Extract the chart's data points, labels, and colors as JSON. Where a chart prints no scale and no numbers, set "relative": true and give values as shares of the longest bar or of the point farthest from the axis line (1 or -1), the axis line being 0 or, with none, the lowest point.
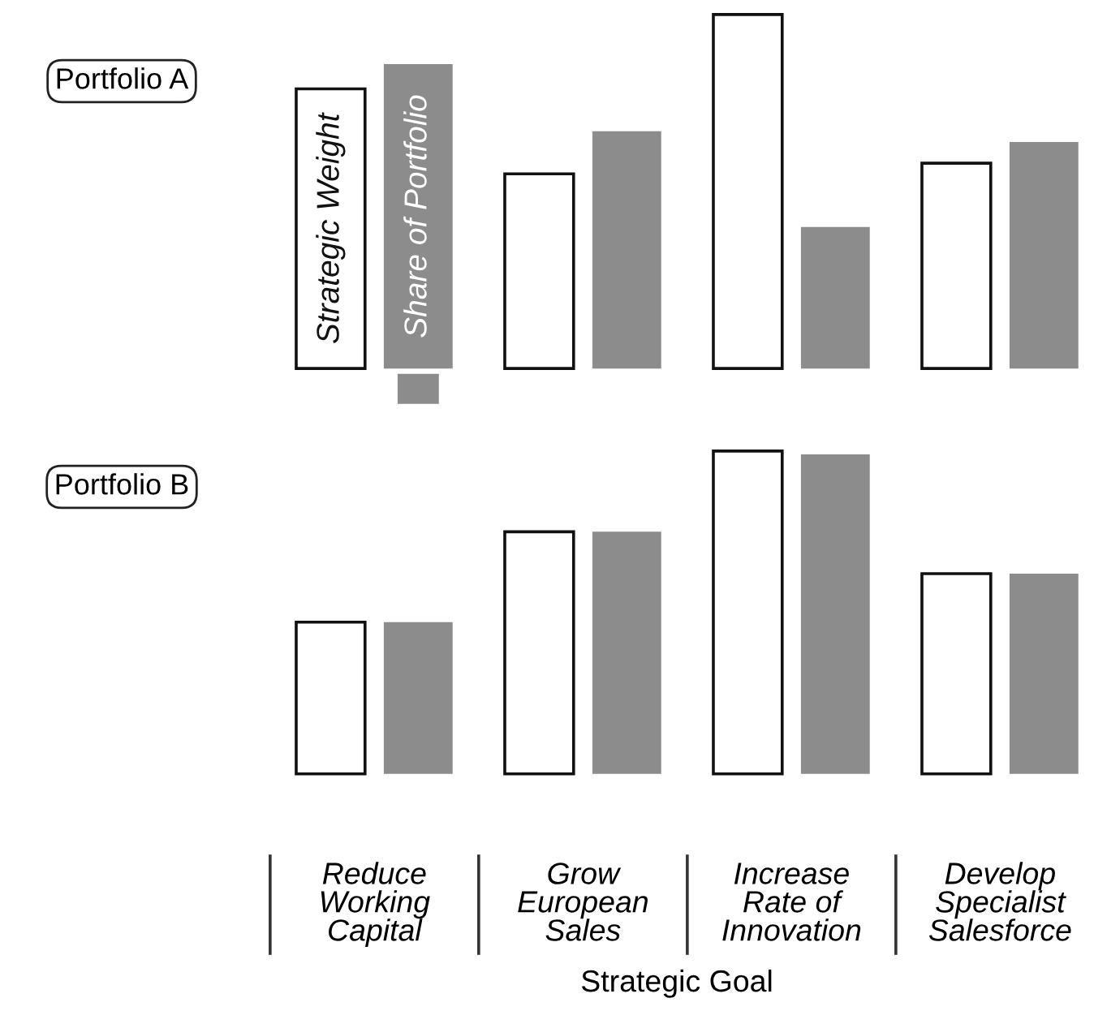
{
  "chart_data": [
    {
      "type": "bar",
      "title": "Portfolio A",
      "relative": true,
      "legend": false,
      "tick_labels": false,
      "grid": false,
      "categories": [
        null,
        null,
        null,
        null
      ],
      "series": [
        {
          "name": "Strategic Weight",
          "color": "#ffffff",
          "values": [
            0.79,
            0.55,
            1.0,
            0.58
          ]
        },
        {
          "name": "Share of Portfolio",
          "color": "#8c8c8c",
          "values": [
            0.86,
            0.67,
            0.4,
            0.64
          ]
        }
      ]
    },
    {
      "type": "bar",
      "title": "Portfolio B",
      "relative": true,
      "legend": false,
      "tick_labels": "x",
      "grid": false,
      "xlabel": "Strategic Goal",
      "categories": [
        "Reduce\nWorking\nCapital",
        "Grow\nEuropean\nSales",
        "Increase\nRate of\nInnovation",
        "Develop\nSpecialist\nSalesforce"
      ],
      "series": [
        {
          "color": "#ffffff",
          "values": [
            0.47,
            0.75,
            1.0,
            0.62
          ]
        },
        {
          "color": "#8c8c8c",
          "values": [
            0.47,
            0.75,
            0.99,
            0.62
          ]
        }
      ]
    }
  ]
}
